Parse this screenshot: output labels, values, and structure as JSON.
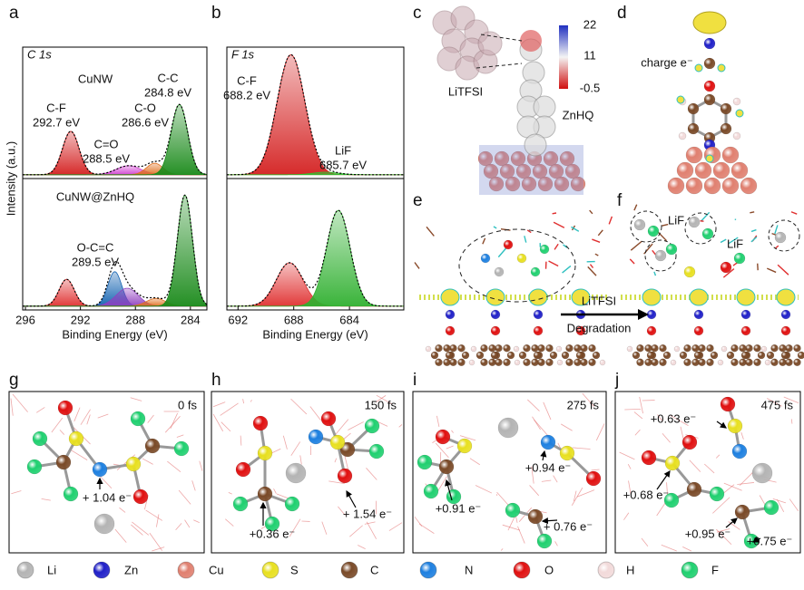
{
  "chart_data": [
    {
      "type": "xps",
      "panel": "a",
      "core_level": "C 1s",
      "xlabel": "Binding Energy (eV)",
      "ylabel": "Intensity (a.u.)",
      "xlim": [
        296.2,
        282.8
      ],
      "xticks": [
        296,
        292,
        288,
        284
      ],
      "ylim": [
        -3,
        100
      ],
      "subplots": [
        {
          "title": "CuNW",
          "names": [
            "C-F",
            "C=O",
            "C-O",
            "C-C"
          ],
          "centers": [
            292.7,
            288.5,
            286.6,
            284.8
          ],
          "center_labels": [
            "292.7 eV",
            "288.5 eV",
            "286.6 eV",
            "284.8 eV"
          ],
          "heights": [
            34,
            7,
            9,
            55
          ],
          "widths": [
            0.6,
            0.9,
            0.6,
            0.6
          ],
          "colors": [
            "#d42020",
            "#d040d0",
            "#e07020",
            "#1a8a1a"
          ]
        },
        {
          "title": "CuNW@ZnHQ",
          "names": [
            null,
            "O-C=C",
            null,
            null,
            null
          ],
          "centers": [
            293.0,
            289.5,
            288.6,
            286.5,
            284.4
          ],
          "center_labels": [
            null,
            "289.5 eV",
            null,
            null,
            null
          ],
          "heights": [
            21,
            27,
            14,
            6,
            87
          ],
          "widths": [
            0.55,
            0.5,
            0.8,
            0.7,
            0.55
          ],
          "colors": [
            "#e03030",
            "#1060b0",
            "#9040c0",
            "#e07020",
            "#1a8a1a"
          ]
        }
      ]
    },
    {
      "type": "xps",
      "panel": "b",
      "core_level": "F 1s",
      "xlabel": "Binding Energy (eV)",
      "xlim": [
        692.8,
        680.1
      ],
      "xticks": [
        692,
        688,
        684
      ],
      "ylim": [
        -3,
        100
      ],
      "subplots": [
        {
          "names": [
            "C-F",
            "LiF"
          ],
          "centers": [
            688.2,
            685.7
          ],
          "center_labels": [
            "688.2 eV",
            "685.7 eV"
          ],
          "heights": [
            94,
            2
          ],
          "widths": [
            1.0,
            0.9
          ],
          "colors": [
            "#d42020",
            "#30c030"
          ]
        },
        {
          "names": [
            null,
            null
          ],
          "centers": [
            688.3,
            684.8
          ],
          "center_labels": [
            null,
            null
          ],
          "heights": [
            34,
            75
          ],
          "widths": [
            0.95,
            0.85
          ],
          "colors": [
            "#e03030",
            "#30b030"
          ]
        }
      ]
    }
  ],
  "panels": {
    "c": {
      "letter": "c",
      "labels": [
        "LiTFSI",
        "ZnHQ"
      ],
      "colorbar_ticks": [
        22,
        11,
        -0.5
      ]
    },
    "d": {
      "letter": "d",
      "labels": [
        "charge e⁻"
      ]
    },
    "e": {
      "letter": "e",
      "labels": [
        "LiTFSI",
        "Degradation"
      ]
    },
    "f": {
      "letter": "f",
      "labels": [
        "LiF",
        "LiF"
      ]
    },
    "g": {
      "letter": "g",
      "time": "0 fs",
      "charges": [
        "+ 1.04 e⁻"
      ]
    },
    "h": {
      "letter": "h",
      "time": "150 fs",
      "charges": [
        "+0.36 e⁻",
        "+ 1.54 e⁻"
      ]
    },
    "i": {
      "letter": "i",
      "time": "275 fs",
      "charges": [
        "+0.94 e⁻",
        "+0.91 e⁻",
        "+ 0.76 e⁻"
      ]
    },
    "j": {
      "letter": "j",
      "time": "475 fs",
      "charges": [
        "+0.63 e⁻",
        "+0.68 e⁻",
        "+0.95 e⁻",
        "+0.75 e⁻"
      ]
    }
  },
  "legend": [
    {
      "name": "Li",
      "color": "#b4b4b4"
    },
    {
      "name": "Zn",
      "color": "#2020c8"
    },
    {
      "name": "Cu",
      "color": "#e08070"
    },
    {
      "name": "S",
      "color": "#e8e020"
    },
    {
      "name": "C",
      "color": "#7a4a28"
    },
    {
      "name": "N",
      "color": "#1e80e0"
    },
    {
      "name": "O",
      "color": "#e01010"
    },
    {
      "name": "H",
      "color": "#f2dada"
    },
    {
      "name": "F",
      "color": "#20d070"
    }
  ]
}
